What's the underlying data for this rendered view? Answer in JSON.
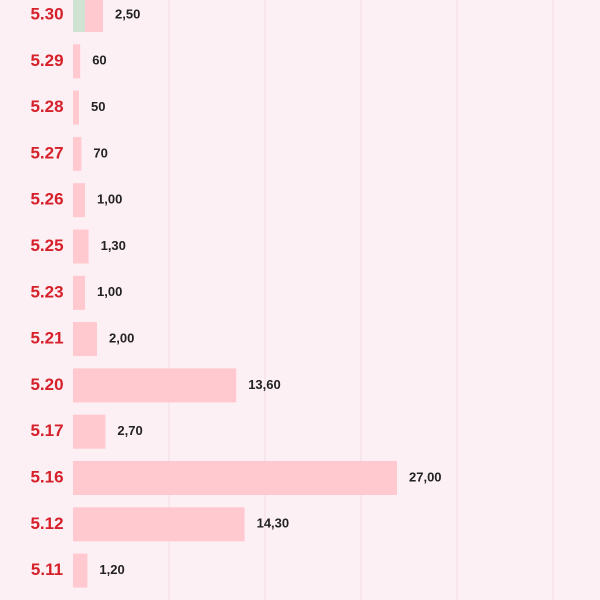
{
  "chart_data": {
    "type": "bar",
    "categories": [
      "5.30",
      "5.29",
      "5.28",
      "5.27",
      "5.26",
      "5.25",
      "5.23",
      "5.21",
      "5.20",
      "5.17",
      "5.16",
      "5.12",
      "5.11"
    ],
    "series": [
      {
        "color": "#cfe3d3",
        "values": [
          100,
          0,
          0,
          0,
          0,
          0,
          0,
          0,
          0,
          0,
          0,
          0,
          0
        ]
      },
      {
        "color": "#ffc9cf",
        "values": [
          150,
          60,
          50,
          70,
          100,
          130,
          100,
          200,
          1360,
          270,
          2700,
          1430,
          120
        ]
      }
    ],
    "value_labels": [
      "2,50",
      "60",
      "50",
      "70",
      "1,00",
      "1,30",
      "1,00",
      "2,00",
      "13,60",
      "2,70",
      "27,00",
      "14,30",
      "1,20"
    ],
    "xlim": [
      0,
      4000
    ],
    "xticks": [
      800,
      1600,
      2400,
      3200,
      4000
    ],
    "grid": true
  }
}
